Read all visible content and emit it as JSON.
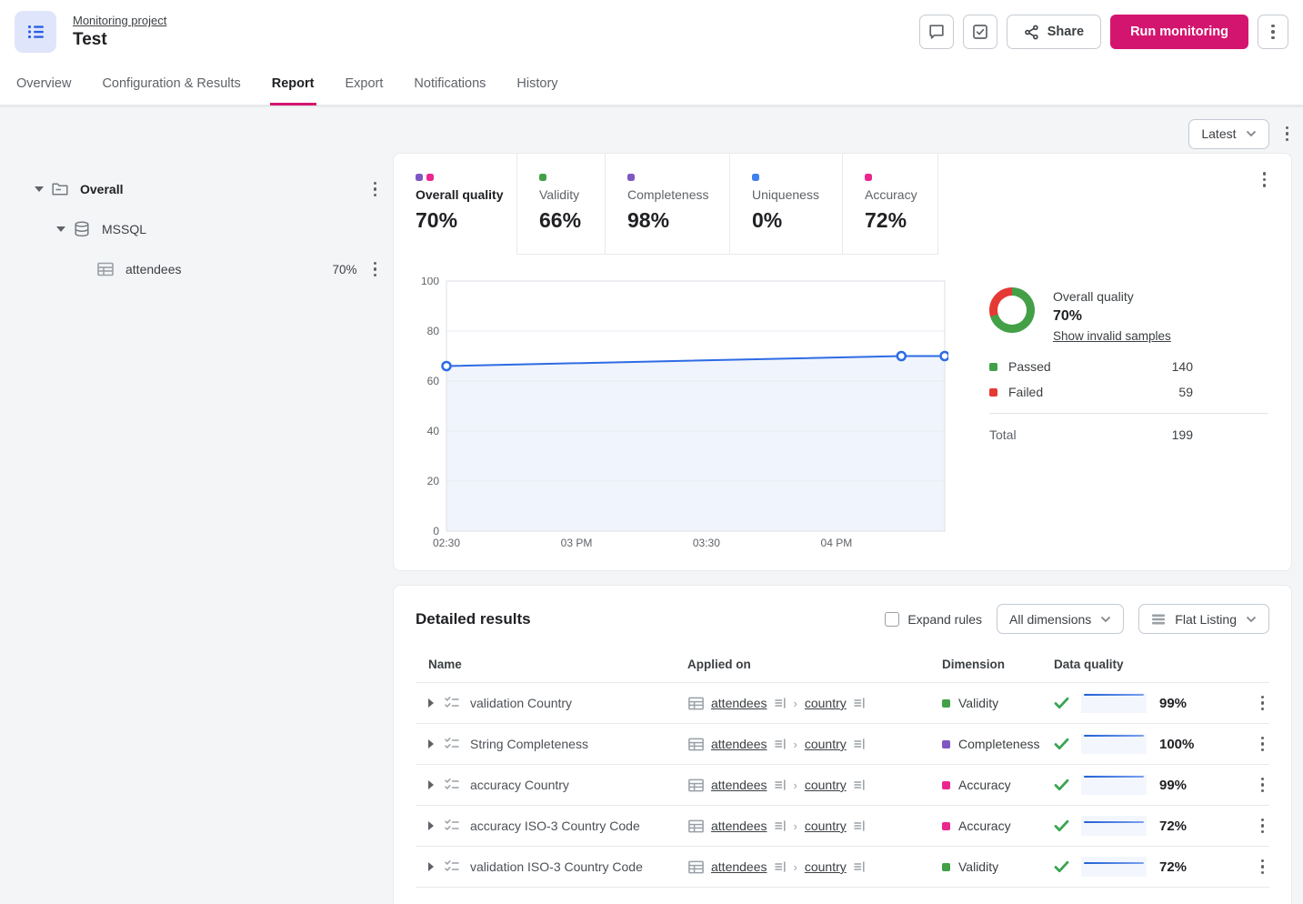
{
  "header": {
    "breadcrumb": "Monitoring project",
    "title": "Test",
    "share_label": "Share",
    "run_label": "Run monitoring",
    "accent_color": "#d4156f"
  },
  "tabs": [
    {
      "label": "Overview",
      "active": false
    },
    {
      "label": "Configuration & Results",
      "active": false
    },
    {
      "label": "Report",
      "active": true
    },
    {
      "label": "Export",
      "active": false
    },
    {
      "label": "Notifications",
      "active": false
    },
    {
      "label": "History",
      "active": false
    }
  ],
  "version_selector": {
    "value": "Latest"
  },
  "tree": {
    "items": [
      {
        "label": "Overall",
        "icon": "folder-icon",
        "level": 0
      },
      {
        "label": "MSSQL",
        "icon": "database-icon",
        "level": 1
      },
      {
        "label": "attendees",
        "icon": "table-icon",
        "level": 2,
        "quality": "70%"
      }
    ]
  },
  "report": {
    "metric_cards": [
      {
        "label": "Overall quality",
        "value": "70%",
        "dots": [
          "#7e57c2",
          "#ec268f"
        ],
        "active": true
      },
      {
        "label": "Validity",
        "value": "66%",
        "dots": [
          "#43a047"
        ],
        "active": false
      },
      {
        "label": "Completeness",
        "value": "98%",
        "dots": [
          "#7e57c2"
        ],
        "active": false
      },
      {
        "label": "Uniqueness",
        "value": "0%",
        "dots": [
          "#4080ee"
        ],
        "active": false
      },
      {
        "label": "Accuracy",
        "value": "72%",
        "dots": [
          "#ec268f"
        ],
        "active": false
      }
    ],
    "chart_data": {
      "type": "line",
      "series": [
        {
          "name": "Overall quality",
          "points": [
            {
              "x": "02:30",
              "x_min": 150,
              "y": 66
            },
            {
              "x": "04:15",
              "x_min": 255,
              "y": 70
            },
            {
              "x": "04:25",
              "x_min": 265,
              "y": 70
            }
          ]
        }
      ],
      "x_range_min": [
        150,
        265
      ],
      "x_ticks": [
        {
          "min": 150,
          "label": "02:30"
        },
        {
          "min": 180,
          "label": "03 PM"
        },
        {
          "min": 210,
          "label": "03:30"
        },
        {
          "min": 240,
          "label": "04 PM"
        }
      ],
      "ylim": [
        0,
        100
      ],
      "y_ticks": [
        0,
        20,
        40,
        60,
        80,
        100
      ],
      "grid": "horizontal",
      "legend_position": "none",
      "line_color": "#2e6be5",
      "area_fill": "#f0f4fc",
      "marker": "open-circle"
    },
    "summary": {
      "title": "Overall quality",
      "value": "70%",
      "link": "Show invalid samples",
      "passed_label": "Passed",
      "passed": "140",
      "failed_label": "Failed",
      "failed": "59",
      "total_label": "Total",
      "total": "199",
      "passed_color": "#43a047",
      "failed_color": "#e53935"
    }
  },
  "detailed": {
    "title": "Detailed results",
    "expand_rules_label": "Expand rules",
    "dimensions_filter": "All dimensions",
    "listing_mode": "Flat Listing",
    "columns": [
      "Name",
      "Applied on",
      "Dimension",
      "Data quality"
    ],
    "rows": [
      {
        "name": "validation Country",
        "table": "attendees",
        "column": "country",
        "dimension": "Validity",
        "dimension_color": "#43a047",
        "quality": "99%",
        "quality_pct": 99
      },
      {
        "name": "String Completeness",
        "table": "attendees",
        "column": "country",
        "dimension": "Completeness",
        "dimension_color": "#7e57c2",
        "quality": "100%",
        "quality_pct": 100
      },
      {
        "name": "accuracy Country",
        "table": "attendees",
        "column": "country",
        "dimension": "Accuracy",
        "dimension_color": "#ec268f",
        "quality": "99%",
        "quality_pct": 99
      },
      {
        "name": "accuracy ISO-3 Country Code",
        "table": "attendees",
        "column": "country",
        "dimension": "Accuracy",
        "dimension_color": "#ec268f",
        "quality": "72%",
        "quality_pct": 72
      },
      {
        "name": "validation ISO-3 Country Code",
        "table": "attendees",
        "column": "country",
        "dimension": "Validity",
        "dimension_color": "#43a047",
        "quality": "72%",
        "quality_pct": 72
      }
    ]
  },
  "icons": {
    "app": "list-icon",
    "comment": "comment-bubble-icon",
    "tasks": "checkbox-icon",
    "share": "share-icon",
    "menu": "kebab-icon",
    "rule": "checklist-icon",
    "table": "table-icon",
    "attribute": "profile-icon",
    "check": "checkmark-icon"
  }
}
